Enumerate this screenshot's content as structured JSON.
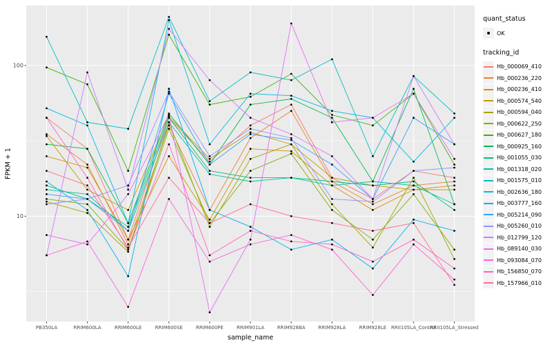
{
  "legend": {
    "quant_status_title": "quant_status",
    "ok_label": "OK",
    "tracking_id_title": "tracking_id"
  },
  "chart_data": {
    "type": "line",
    "title": "",
    "xlabel": "sample_name",
    "ylabel": "FPKM + 1",
    "y_scale": "log10",
    "ylim": [
      2,
      250
    ],
    "y_major_ticks": [
      10,
      100
    ],
    "y_minor_ticks": [
      3.162,
      31.623
    ],
    "grid": "on",
    "legend_position": "right",
    "panel_color": "#EBEBEB",
    "grid_color": "#FFFFFF",
    "point_color": "#000000",
    "categories": [
      "PB350LA",
      "RRIM600LA",
      "RRIM600LE",
      "RRIM600SE",
      "RRIM600PE",
      "RRIM901LA",
      "RRIM928BA",
      "RRIM928LA",
      "RRIM928LE",
      "RRII105LA_Control",
      "RRII105LA_Stressed"
    ],
    "series": [
      {
        "name": "Hb_000069_410",
        "color": "#F8766D",
        "values": [
          45,
          28,
          7,
          45,
          23,
          40,
          55,
          18,
          13,
          20,
          18
        ]
      },
      {
        "name": "Hb_000236_220",
        "color": "#EA8331",
        "values": [
          35,
          22,
          6.5,
          40,
          11,
          33,
          50,
          17,
          12,
          16,
          17
        ]
      },
      {
        "name": "Hb_000236_410",
        "color": "#D89000",
        "values": [
          25,
          21,
          7,
          25,
          9.5,
          28,
          27,
          16,
          11,
          15,
          16
        ]
      },
      {
        "name": "Hb_000574_540",
        "color": "#C09B00",
        "values": [
          34,
          15,
          11,
          46,
          24,
          36,
          30,
          18,
          16,
          15,
          15
        ]
      },
      {
        "name": "Hb_000594_040",
        "color": "#A3A500",
        "values": [
          12.5,
          10.5,
          5.8,
          42,
          8.5,
          24,
          30,
          12,
          6.2,
          18,
          5.2
        ]
      },
      {
        "name": "Hb_000622_250",
        "color": "#7CAE00",
        "values": [
          13,
          12,
          6,
          38,
          9,
          20,
          26,
          11,
          7,
          14,
          6
        ]
      },
      {
        "name": "Hb_000627_180",
        "color": "#39B600",
        "values": [
          97,
          75,
          20,
          160,
          55,
          62,
          88,
          47,
          40,
          65,
          22
        ]
      },
      {
        "name": "Hb_000925_160",
        "color": "#00BB4E",
        "values": [
          30,
          28,
          9,
          48,
          22,
          55,
          60,
          45,
          17,
          70,
          12
        ]
      },
      {
        "name": "Hb_001055_030",
        "color": "#00BF7D",
        "values": [
          16,
          13,
          8.5,
          45,
          20,
          18,
          18,
          17,
          16,
          17,
          11
        ]
      },
      {
        "name": "Hb_001318_020",
        "color": "#00C1A3",
        "values": [
          15,
          14,
          8,
          42,
          19,
          17,
          18,
          16,
          17,
          16,
          12
        ]
      },
      {
        "name": "Hb_001575_010",
        "color": "#00BFC4",
        "values": [
          155,
          42,
          38,
          210,
          58,
          90,
          80,
          110,
          25,
          85,
          48
        ]
      },
      {
        "name": "Hb_002636_180",
        "color": "#00BAE0",
        "values": [
          52,
          40,
          9,
          200,
          30,
          65,
          63,
          50,
          45,
          23,
          45
        ]
      },
      {
        "name": "Hb_003777_160",
        "color": "#00B0F6",
        "values": [
          17,
          11,
          4,
          70,
          11,
          8.5,
          6,
          7,
          4.5,
          9.5,
          8
        ]
      },
      {
        "name": "Hb_005214_090",
        "color": "#35A2FF",
        "values": [
          14,
          13,
          8,
          65,
          22,
          35,
          32,
          22,
          13,
          45,
          30
        ]
      },
      {
        "name": "Hb_005260_010",
        "color": "#9590FF",
        "values": [
          12,
          13,
          16,
          67,
          25,
          38,
          33,
          13,
          12.5,
          20,
          21
        ]
      },
      {
        "name": "Hb_012799_120",
        "color": "#C77CFF",
        "values": [
          5.5,
          90,
          15,
          175,
          80,
          45,
          35,
          25,
          13,
          85,
          30
        ]
      },
      {
        "name": "Hb_089140_030",
        "color": "#E76BF3",
        "values": [
          7.5,
          6.5,
          14,
          47,
          2.3,
          7,
          190,
          42,
          45,
          65,
          24
        ]
      },
      {
        "name": "Hb_093084_070",
        "color": "#FA62DB",
        "values": [
          5.5,
          6.8,
          2.5,
          13,
          5,
          6.5,
          7.5,
          6,
          3,
          6.5,
          3.8
        ]
      },
      {
        "name": "Hb_156850_070",
        "color": "#FF62BC",
        "values": [
          45,
          18,
          6,
          30,
          5.5,
          8,
          6.8,
          6.5,
          5,
          7,
          4.5
        ]
      },
      {
        "name": "Hb_157966_010",
        "color": "#FF6A98",
        "values": [
          20,
          16,
          6.2,
          18,
          9,
          12,
          10,
          9,
          8,
          9,
          3.5
        ]
      }
    ]
  }
}
